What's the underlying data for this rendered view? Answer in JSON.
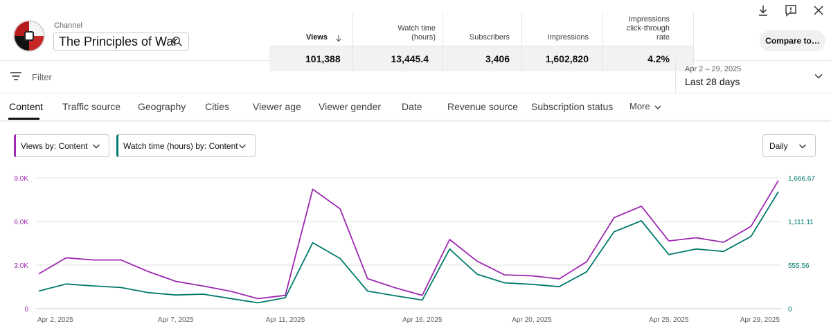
{
  "header": {
    "channel_label": "Channel",
    "channel_name": "The Principles of War",
    "compare_label": "Compare to…"
  },
  "metrics": [
    {
      "label": "Views",
      "value": "101,388"
    },
    {
      "label": "Watch time\n(hours)",
      "value": "13,445.4"
    },
    {
      "label": "Subscribers",
      "value": "3,406"
    },
    {
      "label": "Impressions",
      "value": "1,602,820"
    },
    {
      "label": "Impressions\nclick-through\nrate",
      "value": "4.2%"
    }
  ],
  "filter": {
    "label": "Filter"
  },
  "date": {
    "range": "Apr 2 – 29, 2025",
    "label": "Last 28 days"
  },
  "tabs": [
    "Content",
    "Traffic source",
    "Geography",
    "Cities",
    "Viewer age",
    "Viewer gender",
    "Date",
    "Revenue source",
    "Subscription status",
    "More"
  ],
  "dropdowns": {
    "views": "Views by: Content",
    "watch": "Watch time (hours) by: Content",
    "period": "Daily"
  },
  "colors": {
    "views": "#9c27b0",
    "watch": "#00796b",
    "grid": "#e0e0e0",
    "axis_text": "#606060"
  },
  "chart_data": {
    "type": "line",
    "x": [
      "Apr 2, 2025",
      "Apr 3, 2025",
      "Apr 4, 2025",
      "Apr 5, 2025",
      "Apr 6, 2025",
      "Apr 7, 2025",
      "Apr 8, 2025",
      "Apr 9, 2025",
      "Apr 10, 2025",
      "Apr 11, 2025",
      "Apr 12, 2025",
      "Apr 13, 2025",
      "Apr 14, 2025",
      "Apr 15, 2025",
      "Apr 16, 2025",
      "Apr 17, 2025",
      "Apr 18, 2025",
      "Apr 19, 2025",
      "Apr 20, 2025",
      "Apr 21, 2025",
      "Apr 22, 2025",
      "Apr 23, 2025",
      "Apr 24, 2025",
      "Apr 25, 2025",
      "Apr 26, 2025",
      "Apr 27, 2025",
      "Apr 28, 2025",
      "Apr 29, 2025"
    ],
    "x_tick_labels": [
      "Apr 2, 2025",
      "Apr 7, 2025",
      "Apr 11, 2025",
      "Apr 16, 2025",
      "Apr 20, 2025",
      "Apr 25, 2025",
      "Apr 29, 2025"
    ],
    "x_tick_indices": [
      0,
      5,
      9,
      14,
      18,
      23,
      27
    ],
    "series": [
      {
        "name": "Views by: Content",
        "axis": "left",
        "values": [
          2400,
          3500,
          3350,
          3350,
          2550,
          1880,
          1560,
          1200,
          690,
          920,
          8220,
          6870,
          2070,
          1450,
          920,
          4760,
          3270,
          2330,
          2260,
          2050,
          3230,
          6260,
          7050,
          4660,
          4880,
          4570,
          5660,
          8820
        ]
      },
      {
        "name": "Watch time (hours) by: Content",
        "axis": "right",
        "values": [
          225,
          315,
          290,
          270,
          205,
          175,
          185,
          130,
          75,
          140,
          840,
          640,
          225,
          165,
          110,
          760,
          440,
          330,
          310,
          280,
          470,
          980,
          1120,
          690,
          760,
          730,
          920,
          1490
        ]
      }
    ],
    "y_left": {
      "ticks": [
        "0",
        "3.0K",
        "6.0K",
        "9.0K"
      ],
      "tick_values": [
        0,
        3000,
        6000,
        9000
      ],
      "range": [
        0,
        9000
      ]
    },
    "y_right": {
      "ticks": [
        "0",
        "555.56",
        "1,111.11",
        "1,666.67"
      ],
      "tick_values": [
        0,
        555.56,
        1111.11,
        1666.67
      ],
      "range": [
        0,
        1666.67
      ]
    },
    "grid": true
  }
}
